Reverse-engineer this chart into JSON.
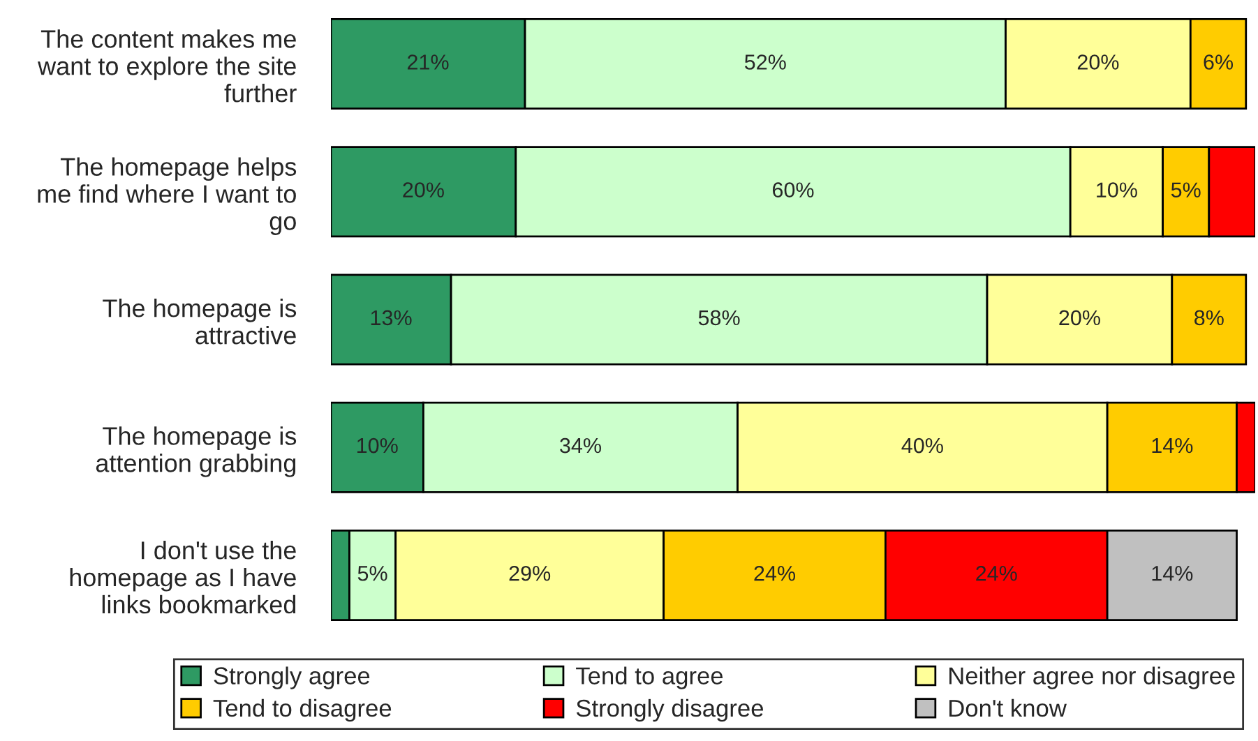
{
  "chart_data": {
    "type": "bar",
    "orientation": "horizontal",
    "stacked": true,
    "categories": [
      "The content makes me\nwant to explore the site\nfurther",
      "The homepage helps\nme find where I want to\ngo",
      "The homepage is\nattractive",
      "The homepage is\nattention grabbing",
      "I don't use the\nhomepage as I have\nlinks bookmarked"
    ],
    "xlim": [
      0,
      100
    ],
    "tick_labels": "y",
    "legend": "bottom",
    "series": [
      {
        "name": "Strongly agree",
        "color": "#2e9a63",
        "values": [
          21,
          20,
          13,
          10,
          2
        ],
        "value_labels": [
          "21%",
          "20%",
          "13%",
          "10%",
          null
        ]
      },
      {
        "name": "Tend to agree",
        "color": "#ccffcc",
        "values": [
          52,
          60,
          58,
          34,
          5
        ],
        "value_labels": [
          "52%",
          "60%",
          "58%",
          "34%",
          "5%"
        ]
      },
      {
        "name": "Neither agree nor disagree",
        "color": "#ffff99",
        "values": [
          20,
          10,
          20,
          40,
          29
        ],
        "value_labels": [
          "20%",
          "10%",
          "20%",
          "40%",
          "29%"
        ]
      },
      {
        "name": "Tend to disagree",
        "color": "#ffcc00",
        "values": [
          6,
          5,
          8,
          14,
          24
        ],
        "value_labels": [
          "6%",
          "5%",
          "8%",
          "14%",
          "24%"
        ]
      },
      {
        "name": "Strongly disagree",
        "color": "#ff0000",
        "values": [
          null,
          5,
          null,
          2,
          24
        ],
        "value_labels": [
          null,
          null,
          null,
          null,
          "24%"
        ]
      },
      {
        "name": "Don't know",
        "color": "#c0c0c0",
        "values": [
          null,
          null,
          null,
          null,
          14
        ],
        "value_labels": [
          null,
          null,
          null,
          null,
          "14%"
        ]
      }
    ]
  }
}
